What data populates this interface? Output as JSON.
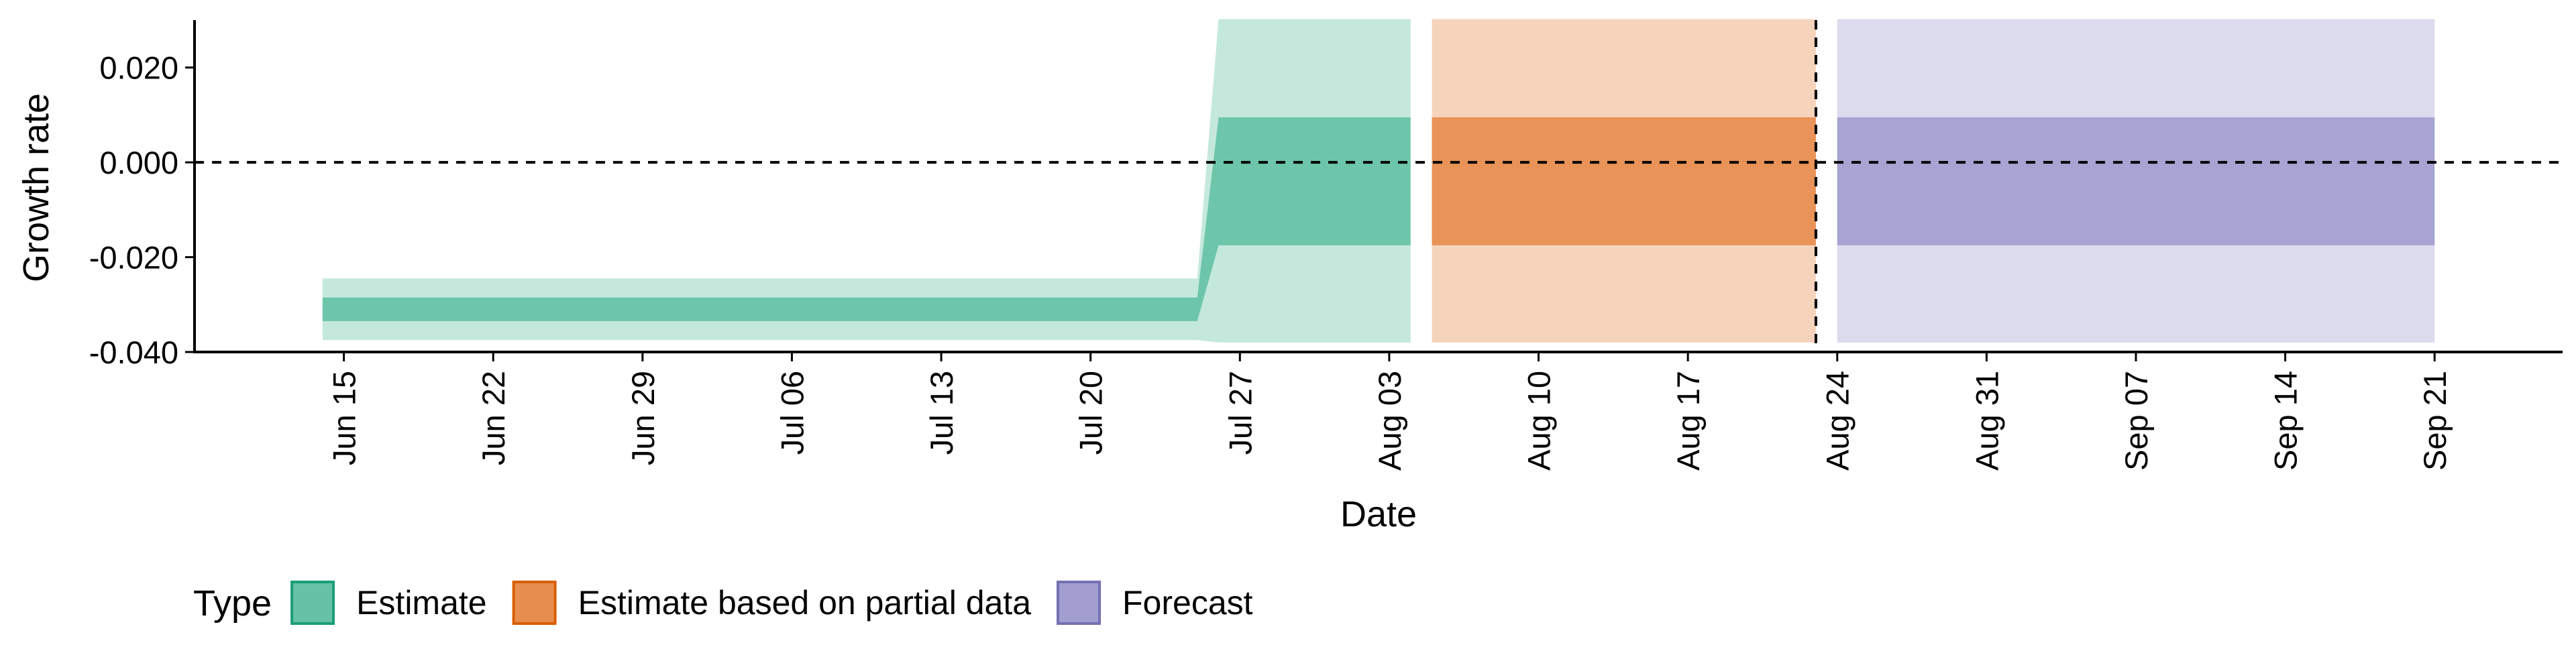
{
  "chart_data": {
    "type": "area",
    "title": "",
    "xlabel": "Date",
    "ylabel": "Growth rate",
    "ylim": [
      -0.04,
      0.03
    ],
    "y_ticks": [
      -0.04,
      -0.02,
      0.0,
      0.02
    ],
    "y_tick_labels": [
      "-0.040",
      "-0.020",
      "0.000",
      "0.020"
    ],
    "x_ticks": [
      "2020-06-15",
      "2020-06-22",
      "2020-06-29",
      "2020-07-06",
      "2020-07-13",
      "2020-07-20",
      "2020-07-27",
      "2020-08-03",
      "2020-08-10",
      "2020-08-17",
      "2020-08-24",
      "2020-08-31",
      "2020-09-07",
      "2020-09-14",
      "2020-09-21"
    ],
    "x_tick_labels": [
      "Jun 15",
      "Jun 22",
      "Jun 29",
      "Jul 06",
      "Jul 13",
      "Jul 20",
      "Jul 27",
      "Aug 03",
      "Aug 10",
      "Aug 17",
      "Aug 24",
      "Aug 31",
      "Sep 07",
      "Sep 14",
      "Sep 21"
    ],
    "xlim": [
      "2020-06-08",
      "2020-09-27"
    ],
    "reference_lines": {
      "horizontal_y": 0.0,
      "vertical_x": "2020-08-23"
    },
    "legend": {
      "title": "Type",
      "position": "bottom-left",
      "entries": [
        {
          "label": "Estimate",
          "fill": "#66c2a5",
          "stroke": "#1b9e77"
        },
        {
          "label": "Estimate based on partial data",
          "fill": "#e78d4f",
          "stroke": "#d95f02"
        },
        {
          "label": "Forecast",
          "fill": "#a29fd0",
          "stroke": "#7570b3"
        }
      ]
    },
    "series": [
      {
        "name": "Estimate",
        "color": "#66c2a5",
        "points": [
          {
            "x": "2020-06-14",
            "lower_90": -0.0375,
            "lower_50": -0.0335,
            "upper_50": -0.0285,
            "upper_90": -0.0245
          },
          {
            "x": "2020-07-25",
            "lower_90": -0.0375,
            "lower_50": -0.0335,
            "upper_50": -0.0285,
            "upper_90": -0.0245
          },
          {
            "x": "2020-07-26",
            "lower_90": -0.038,
            "lower_50": -0.0175,
            "upper_50": 0.0095,
            "upper_90": 0.0302
          },
          {
            "x": "2020-08-04",
            "lower_90": -0.038,
            "lower_50": -0.0175,
            "upper_50": 0.0095,
            "upper_90": 0.0302
          }
        ]
      },
      {
        "name": "Estimate based on partial data",
        "color": "#e78d4f",
        "points": [
          {
            "x": "2020-08-05",
            "lower_90": -0.038,
            "lower_50": -0.0175,
            "upper_50": 0.0095,
            "upper_90": 0.0302
          },
          {
            "x": "2020-08-23",
            "lower_90": -0.038,
            "lower_50": -0.0175,
            "upper_50": 0.0095,
            "upper_90": 0.0302
          }
        ]
      },
      {
        "name": "Forecast",
        "color": "#a29fd0",
        "points": [
          {
            "x": "2020-08-24",
            "lower_90": -0.038,
            "lower_50": -0.0175,
            "upper_50": 0.0095,
            "upper_90": 0.0302
          },
          {
            "x": "2020-09-21",
            "lower_90": -0.038,
            "lower_50": -0.0175,
            "upper_50": 0.0095,
            "upper_90": 0.0302
          }
        ]
      }
    ],
    "grid": false
  }
}
